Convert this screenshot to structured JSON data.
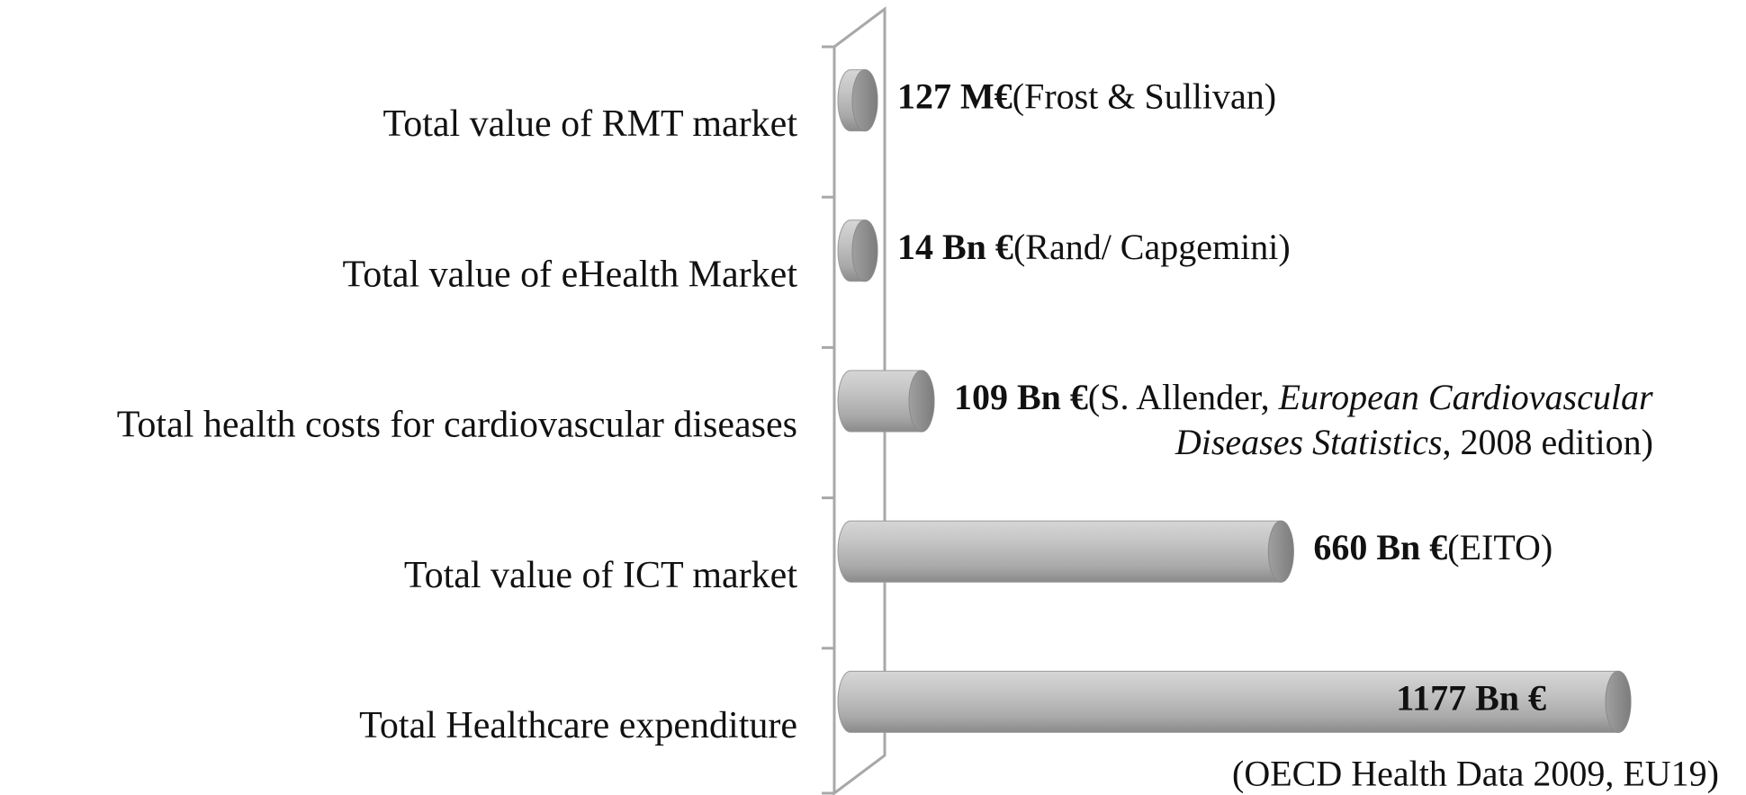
{
  "chart_data": {
    "type": "bar",
    "orientation": "horizontal",
    "color": "#b0b0b0",
    "categories": [
      "Total value of RMT market",
      "Total value of eHealth Market",
      "Total health costs for cardiovascular diseases",
      "Total value of ICT market",
      "Total Healthcare expenditure"
    ],
    "values": [
      0.127,
      14,
      109,
      660,
      1177
    ],
    "value_labels": [
      "127 M€",
      "14 Bn €",
      "109 Bn €",
      "660 Bn €",
      "1177 Bn €"
    ],
    "sources": [
      [
        [
          {
            "text": "(Frost & Sullivan)"
          }
        ]
      ],
      [
        [
          {
            "text": "(Rand/ Capgemini)"
          }
        ]
      ],
      [
        [
          {
            "text": "(S. Allender, "
          },
          {
            "text": "European Cardiovascular",
            "italic": true
          }
        ],
        [
          {
            "text": "Diseases Statistics",
            "italic": true
          },
          {
            "text": ", 2008 edition)"
          }
        ]
      ],
      [
        [
          {
            "text": "(EITO)"
          }
        ]
      ],
      [
        [
          {
            "text": "(OECD Health Data 2009, EU19)"
          }
        ]
      ]
    ]
  }
}
